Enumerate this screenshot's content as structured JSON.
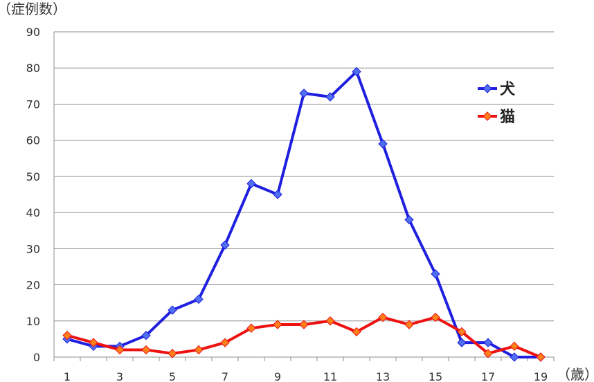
{
  "chart_data": {
    "type": "line",
    "ylabel": "（症例数）",
    "xlabel": "（歳）",
    "x": [
      1,
      2,
      3,
      4,
      5,
      6,
      7,
      8,
      9,
      10,
      11,
      12,
      13,
      14,
      15,
      16,
      17,
      18,
      19
    ],
    "x_tick_labels": [
      "1",
      "3",
      "5",
      "7",
      "9",
      "11",
      "13",
      "15",
      "17",
      "19"
    ],
    "y_tick_labels": [
      "0",
      "10",
      "20",
      "30",
      "40",
      "50",
      "60",
      "70",
      "80",
      "90"
    ],
    "ylim": [
      0,
      90
    ],
    "grid": true,
    "legend_position": "right",
    "series": [
      {
        "name": "犬",
        "color": "#1f1fe0",
        "marker_color": "#4f6fef",
        "values": [
          5,
          3,
          3,
          6,
          13,
          16,
          31,
          48,
          45,
          73,
          72,
          79,
          59,
          38,
          23,
          4,
          4,
          0,
          0
        ]
      },
      {
        "name": "猫",
        "color": "#ee1111",
        "marker_color": "#ff7f1a",
        "values": [
          6,
          4,
          2,
          2,
          1,
          2,
          4,
          8,
          9,
          9,
          10,
          7,
          11,
          9,
          11,
          7,
          1,
          3,
          0
        ]
      }
    ]
  }
}
